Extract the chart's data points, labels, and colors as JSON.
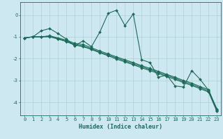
{
  "xlabel": "Humidex (Indice chaleur)",
  "ylabel": "",
  "bg_color": "#cde8f0",
  "grid_color": "#a8d5c8",
  "line_color": "#1a6b5a",
  "xlim": [
    -0.5,
    23.5
  ],
  "ylim": [
    -4.6,
    0.6
  ],
  "yticks": [
    0,
    -1,
    -2,
    -3,
    -4
  ],
  "xticks": [
    0,
    1,
    2,
    3,
    4,
    5,
    6,
    7,
    8,
    9,
    10,
    11,
    12,
    13,
    14,
    15,
    16,
    17,
    18,
    19,
    20,
    21,
    22,
    23
  ],
  "series": [
    {
      "x": [
        0,
        1,
        2,
        3,
        4,
        5,
        6,
        7,
        8,
        9,
        10,
        11,
        12,
        13,
        14,
        15,
        16,
        17,
        18,
        19,
        20,
        21,
        22,
        23
      ],
      "y": [
        -1.05,
        -1.0,
        -1.0,
        -0.95,
        -1.05,
        -1.15,
        -1.3,
        -1.35,
        -1.5,
        -1.65,
        -1.78,
        -1.92,
        -2.05,
        -2.18,
        -2.32,
        -2.45,
        -2.58,
        -2.72,
        -2.85,
        -3.0,
        -3.12,
        -3.28,
        -3.42,
        -4.35
      ],
      "marker": "D",
      "markersize": 2.0,
      "linewidth": 0.8
    },
    {
      "x": [
        0,
        1,
        2,
        3,
        4,
        5,
        6,
        7,
        8,
        9,
        10,
        11,
        12,
        13,
        14,
        15,
        16,
        17,
        18,
        19,
        20,
        21,
        22,
        23
      ],
      "y": [
        -1.05,
        -1.0,
        -1.0,
        -0.98,
        -1.08,
        -1.2,
        -1.35,
        -1.42,
        -1.55,
        -1.7,
        -1.83,
        -1.97,
        -2.1,
        -2.23,
        -2.37,
        -2.5,
        -2.63,
        -2.77,
        -2.9,
        -3.05,
        -3.18,
        -3.33,
        -3.48,
        -4.38
      ],
      "marker": "D",
      "markersize": 2.0,
      "linewidth": 0.8
    },
    {
      "x": [
        0,
        1,
        2,
        3,
        4,
        5,
        6,
        7,
        8,
        9,
        10,
        11,
        12,
        13,
        14,
        15,
        16,
        17,
        18,
        19,
        20,
        21,
        22,
        23
      ],
      "y": [
        -1.05,
        -1.0,
        -1.0,
        -1.0,
        -1.1,
        -1.22,
        -1.38,
        -1.45,
        -1.58,
        -1.73,
        -1.87,
        -2.02,
        -2.15,
        -2.28,
        -2.42,
        -2.55,
        -2.68,
        -2.82,
        -2.95,
        -3.1,
        -3.23,
        -3.38,
        -3.53,
        -4.42
      ],
      "marker": "D",
      "markersize": 2.0,
      "linewidth": 0.8
    },
    {
      "x": [
        0,
        1,
        2,
        3,
        4,
        5,
        6,
        7,
        8,
        9,
        10,
        11,
        12,
        13,
        14,
        15,
        16,
        17,
        18,
        19,
        20,
        21,
        22,
        23
      ],
      "y": [
        -1.05,
        -1.0,
        -0.72,
        -0.62,
        -0.85,
        -1.1,
        -1.42,
        -1.18,
        -1.45,
        -0.78,
        0.08,
        0.22,
        -0.48,
        0.05,
        -2.05,
        -2.18,
        -2.85,
        -2.75,
        -3.25,
        -3.3,
        -2.55,
        -2.95,
        -3.45,
        -4.3
      ],
      "marker": "D",
      "markersize": 2.0,
      "linewidth": 0.8
    }
  ]
}
